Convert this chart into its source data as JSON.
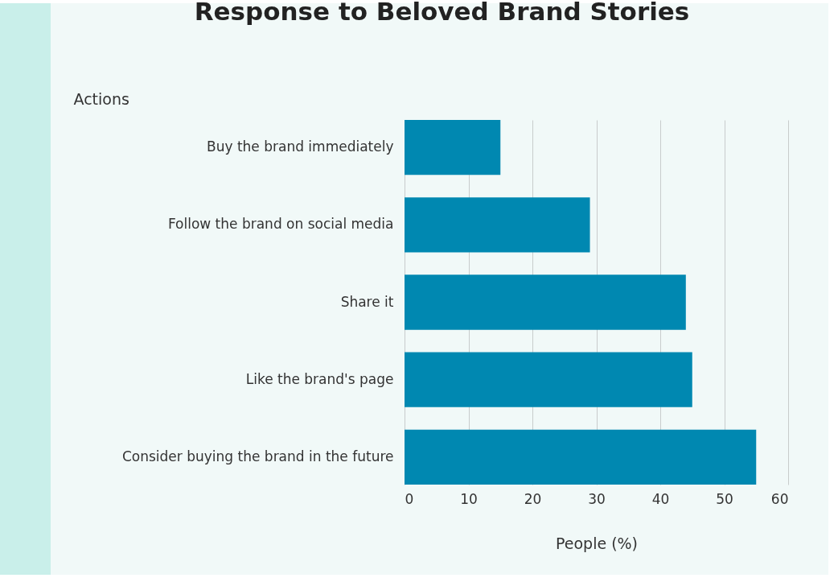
{
  "chart_data": {
    "type": "bar",
    "orientation": "horizontal",
    "title": "Response to Beloved Brand Stories",
    "xlabel": "People (%)",
    "ylabel": "Actions",
    "categories": [
      "Buy the brand immediately",
      "Follow the brand on social media",
      "Share it",
      "Like the brand's page",
      "Consider buying the brand in the future"
    ],
    "values": [
      15,
      29,
      44,
      45,
      55
    ],
    "color": "#0088b1",
    "xlim": [
      0,
      60
    ],
    "xticks": [
      0,
      10,
      20,
      30,
      40,
      50,
      60
    ],
    "grid": "x"
  }
}
